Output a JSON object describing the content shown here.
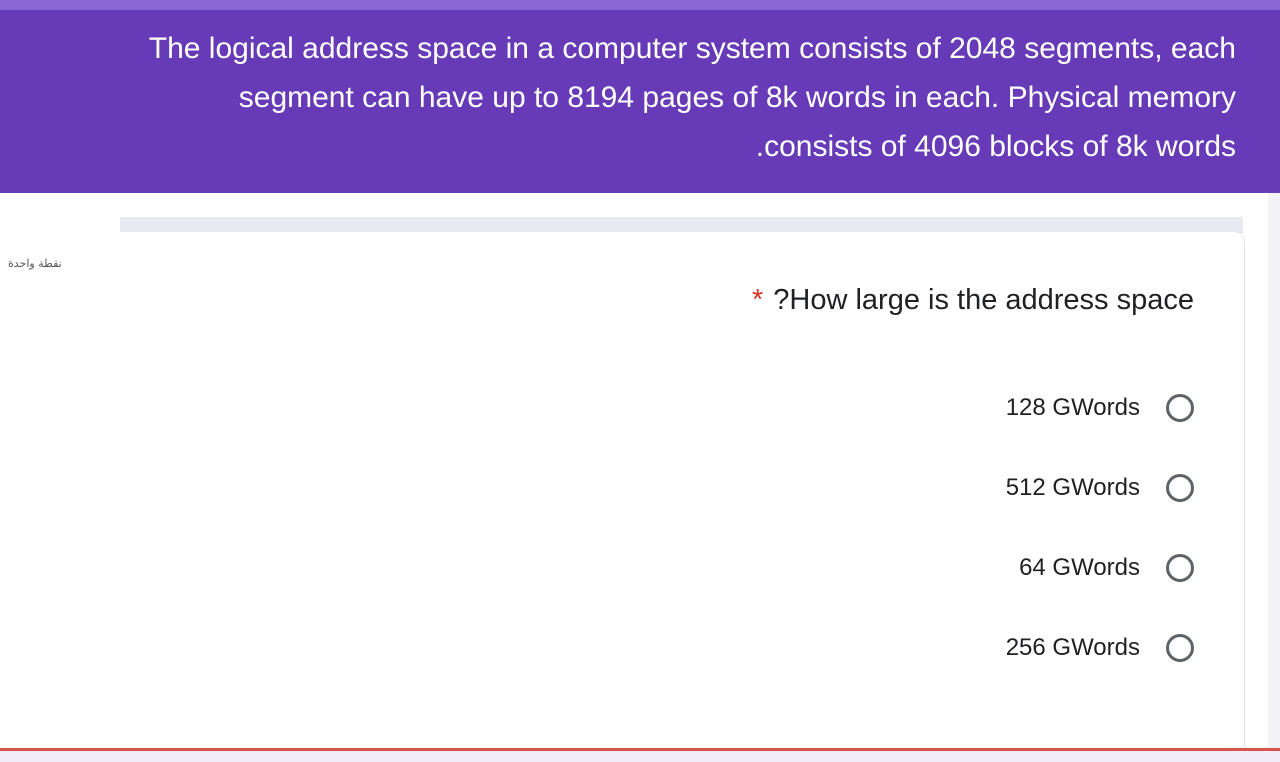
{
  "header": {
    "lines": [
      "The logical address space in a computer system consists of 2048 segments, each",
      "segment can have up to 8194 pages of 8k words in each. Physical memory",
      ".consists of 4096 blocks of 8k words"
    ]
  },
  "question": {
    "points": "نقطة واحدة",
    "title": "?How large is the address space",
    "required_marker": "*",
    "options": [
      {
        "label": "128 GWords",
        "selected": false
      },
      {
        "label": "512 GWords",
        "selected": false
      },
      {
        "label": "64 GWords",
        "selected": false
      },
      {
        "label": "256 GWords",
        "selected": false
      }
    ]
  },
  "colors": {
    "header_bg": "#673ab7",
    "required_star": "#d93025",
    "radio_border": "#5f6368"
  }
}
